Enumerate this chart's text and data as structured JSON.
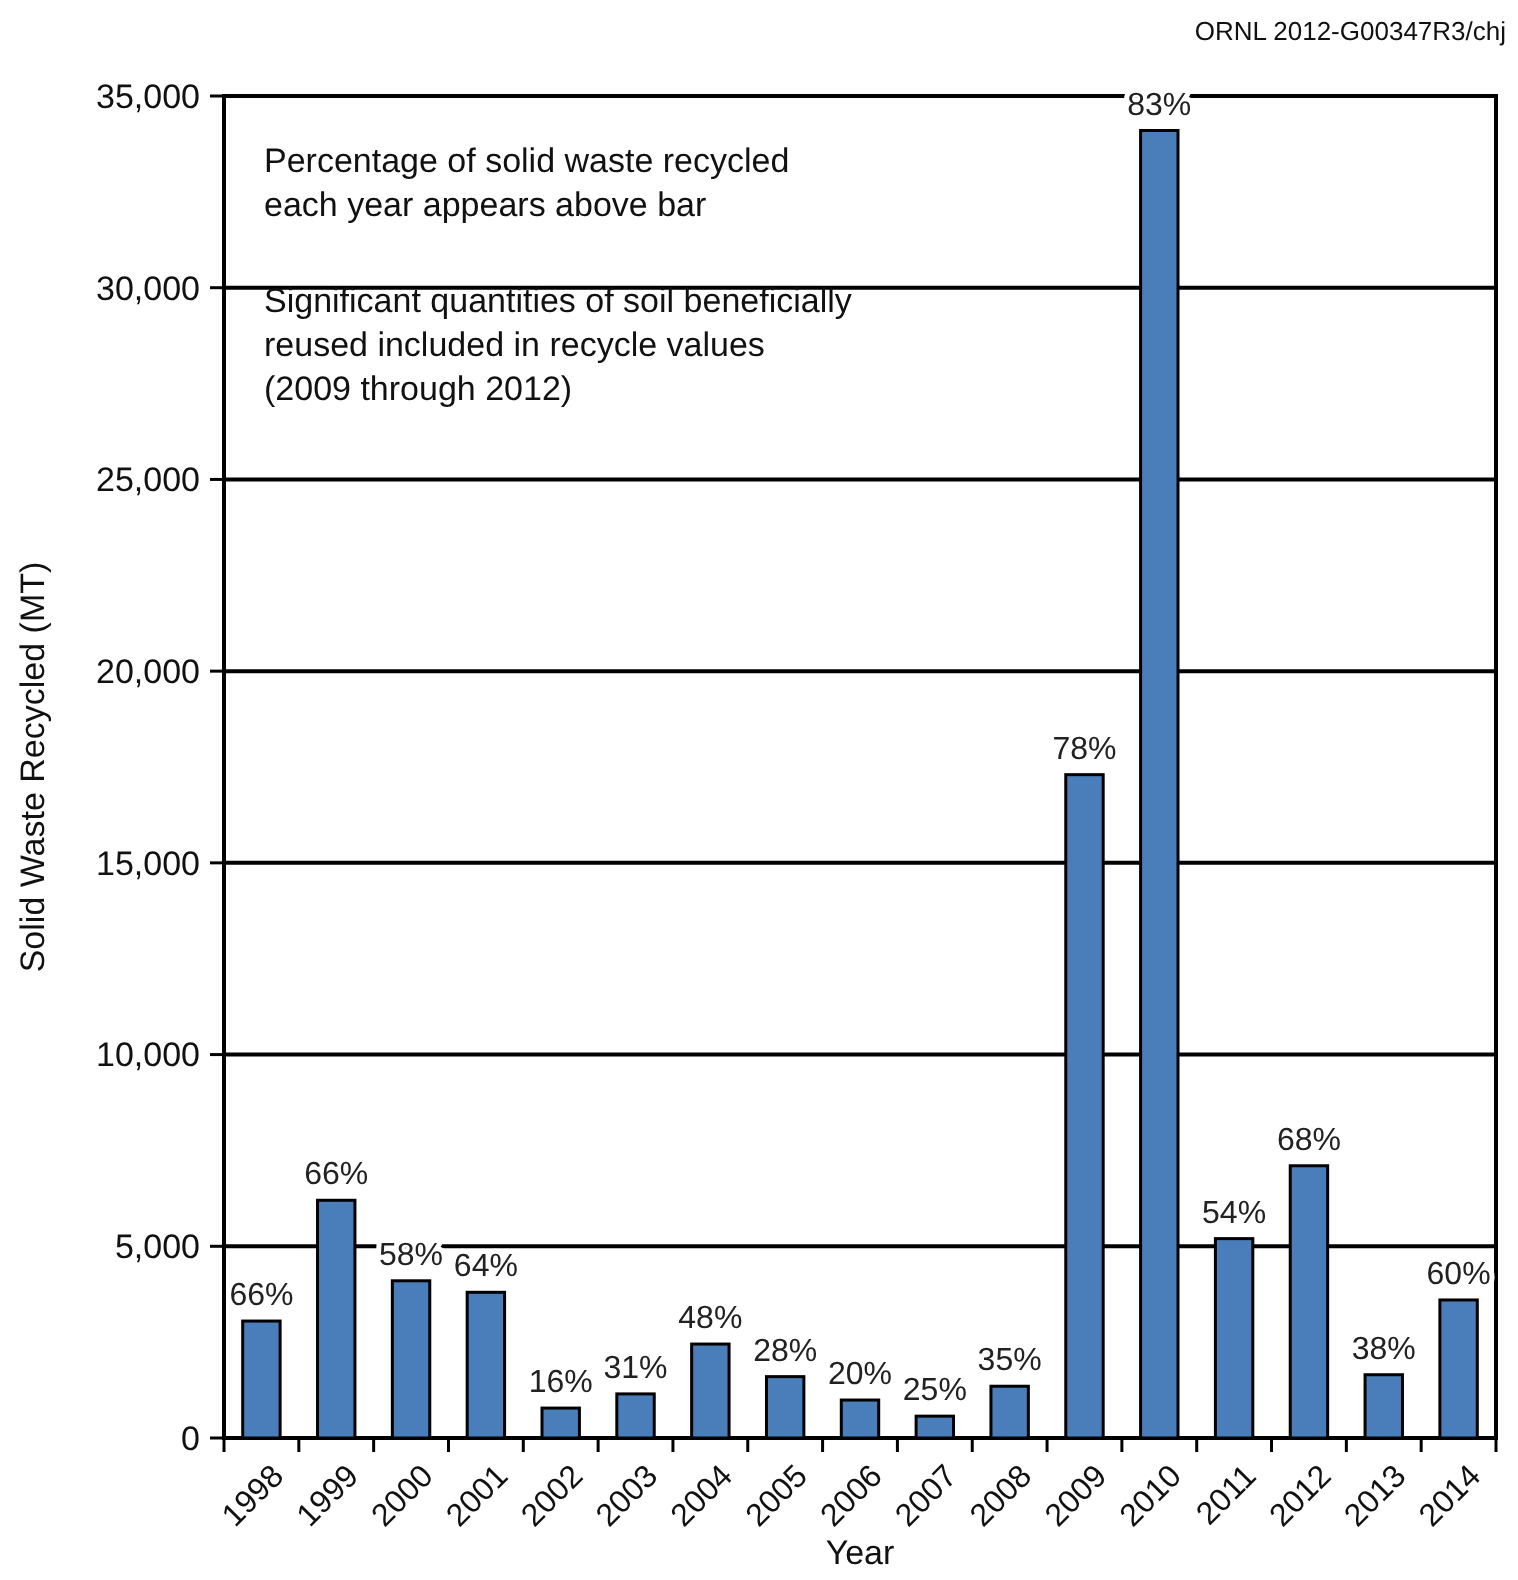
{
  "chart_data": {
    "type": "bar",
    "xlabel": "Year",
    "ylabel": "Solid Waste Recycled (MT)",
    "categories": [
      "1998",
      "1999",
      "2000",
      "2001",
      "2002",
      "2003",
      "2004",
      "2005",
      "2006",
      "2007",
      "2008",
      "2009",
      "2010",
      "2011",
      "2012",
      "2013",
      "2014"
    ],
    "values": [
      3050,
      6200,
      4100,
      3800,
      780,
      1150,
      2450,
      1600,
      990,
      570,
      1350,
      17300,
      34100,
      5200,
      7100,
      1650,
      3600
    ],
    "color": "#4a7ebb",
    "ylim": [
      0,
      35000
    ],
    "yticks": [
      0,
      {
        "value": 5000,
        "label": "5,000"
      },
      {
        "value": 10000,
        "label": "10,000"
      },
      {
        "value": 15000,
        "label": "15,000"
      },
      {
        "value": 20000,
        "label": "20,000"
      },
      {
        "value": 25000,
        "label": "25,000"
      },
      {
        "value": 30000,
        "label": "30,000"
      },
      {
        "value": 35000,
        "label": "35,000"
      }
    ],
    "grid": "y",
    "annotations": [
      "Percentage of solid waste recycled\neach year appears above bar",
      "Significant quantities of soil beneficially\nreused included in recycle values\n(2009 through 2012)",
      {
        "text": "66%",
        "x": "1998",
        "y": 3050
      },
      {
        "text": "66%",
        "x": "1999",
        "y": 6200
      },
      {
        "text": "58%",
        "x": "2000",
        "y": 4100
      },
      {
        "text": "64%",
        "x": "2001",
        "y": 3800
      },
      {
        "text": "16%",
        "x": "2002",
        "y": 780
      },
      {
        "text": "31%",
        "x": "2003",
        "y": 1150
      },
      {
        "text": "48%",
        "x": "2004",
        "y": 2450
      },
      {
        "text": "28%",
        "x": "2005",
        "y": 1600
      },
      {
        "text": "20%",
        "x": "2006",
        "y": 990
      },
      {
        "text": "25%",
        "x": "2007",
        "y": 570
      },
      {
        "text": "35%",
        "x": "2008",
        "y": 1350
      },
      {
        "text": "78%",
        "x": "2009",
        "y": 17300
      },
      {
        "text": "83%",
        "x": "2010",
        "y": 34100
      },
      {
        "text": "54%",
        "x": "2011",
        "y": 5200
      },
      {
        "text": "68%",
        "x": "2012",
        "y": 7100
      },
      {
        "text": "38%",
        "x": "2013",
        "y": 1650
      },
      {
        "text": "60%",
        "x": "2014",
        "y": 3600
      },
      "ORNL 2012-G00347R3/chj"
    ]
  }
}
